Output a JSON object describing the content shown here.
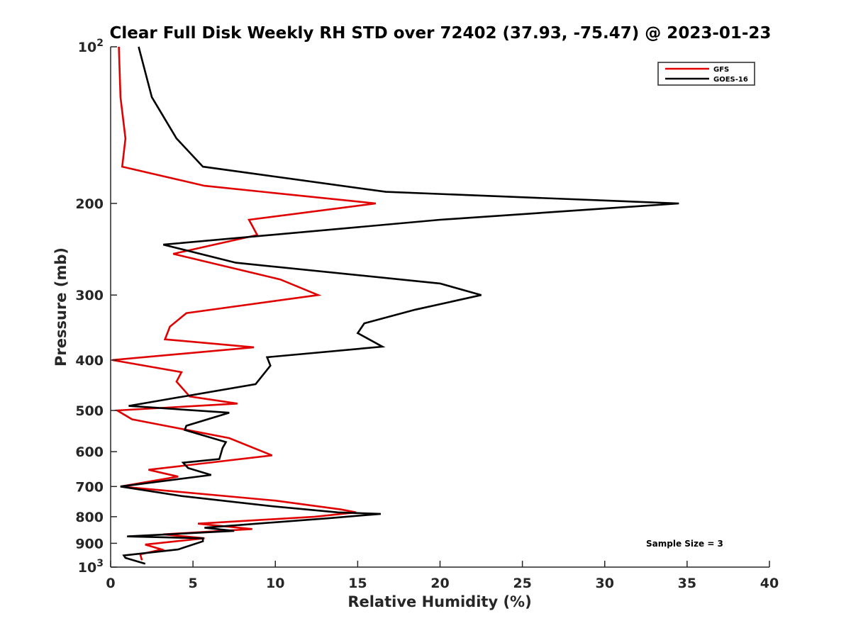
{
  "chart_data": {
    "type": "line",
    "title": "Clear Full Disk Weekly RH STD over 72402 (37.93, -75.47) @ 2023-01-23",
    "xlabel": "Relative Humidity (%)",
    "ylabel": "Pressure (mb)",
    "xlim": [
      0,
      40
    ],
    "ylim": [
      100,
      1000
    ],
    "yscale": "log",
    "y_reversed": true,
    "grid": false,
    "x_ticks": [
      {
        "value": 0,
        "label": "0"
      },
      {
        "value": 5,
        "label": "5"
      },
      {
        "value": 10,
        "label": "10"
      },
      {
        "value": 15,
        "label": "15"
      },
      {
        "value": 20,
        "label": "20"
      },
      {
        "value": 25,
        "label": "25"
      },
      {
        "value": 30,
        "label": "30"
      },
      {
        "value": 35,
        "label": "35"
      },
      {
        "value": 40,
        "label": "40"
      }
    ],
    "y_ticks": [
      {
        "value": 100,
        "base": "10",
        "exp": "2"
      },
      {
        "value": 200,
        "label": "200"
      },
      {
        "value": 300,
        "label": "300"
      },
      {
        "value": 400,
        "label": "400"
      },
      {
        "value": 500,
        "label": "500"
      },
      {
        "value": 600,
        "label": "600"
      },
      {
        "value": 700,
        "label": "700"
      },
      {
        "value": 800,
        "label": "800"
      },
      {
        "value": 900,
        "label": "900"
      },
      {
        "value": 1000,
        "base": "10",
        "exp": "3"
      }
    ],
    "legend": {
      "position": "top-right"
    },
    "annotation": "Sample Size = 3",
    "series": [
      {
        "name": "GFS",
        "color": "#e00000",
        "points": [
          [
            0.5,
            100
          ],
          [
            0.6,
            125
          ],
          [
            0.9,
            150
          ],
          [
            0.7,
            170
          ],
          [
            5.7,
            185
          ],
          [
            16.1,
            200
          ],
          [
            8.4,
            215
          ],
          [
            8.9,
            230
          ],
          [
            3.8,
            250
          ],
          [
            10.3,
            280
          ],
          [
            12.6,
            300
          ],
          [
            4.6,
            325
          ],
          [
            3.6,
            345
          ],
          [
            3.3,
            365
          ],
          [
            8.7,
            378
          ],
          [
            0.1,
            400
          ],
          [
            4.3,
            422
          ],
          [
            4.0,
            440
          ],
          [
            4.8,
            470
          ],
          [
            7.7,
            485
          ],
          [
            0.4,
            500
          ],
          [
            1.3,
            520
          ],
          [
            7.2,
            565
          ],
          [
            9.8,
            610
          ],
          [
            2.3,
            650
          ],
          [
            4.1,
            670
          ],
          [
            0.6,
            700
          ],
          [
            10.0,
            745
          ],
          [
            14.0,
            775
          ],
          [
            14.9,
            785
          ],
          [
            12.4,
            800
          ],
          [
            5.3,
            825
          ],
          [
            8.6,
            845
          ],
          [
            3.2,
            865
          ],
          [
            5.7,
            880
          ],
          [
            2.1,
            905
          ],
          [
            3.1,
            925
          ],
          [
            1.8,
            945
          ],
          [
            1.9,
            970
          ]
        ]
      },
      {
        "name": "GOES-16",
        "color": "#000000",
        "points": [
          [
            1.7,
            100
          ],
          [
            2.5,
            125
          ],
          [
            4.0,
            150
          ],
          [
            5.6,
            170
          ],
          [
            16.7,
            190
          ],
          [
            34.5,
            200
          ],
          [
            20.0,
            215
          ],
          [
            3.2,
            240
          ],
          [
            7.6,
            260
          ],
          [
            20.0,
            285
          ],
          [
            22.5,
            300
          ],
          [
            18.5,
            320
          ],
          [
            15.4,
            340
          ],
          [
            15.0,
            355
          ],
          [
            16.5,
            377
          ],
          [
            9.5,
            395
          ],
          [
            9.7,
            410
          ],
          [
            8.8,
            445
          ],
          [
            1.1,
            490
          ],
          [
            7.2,
            505
          ],
          [
            4.6,
            535
          ],
          [
            4.5,
            545
          ],
          [
            7.0,
            575
          ],
          [
            6.8,
            590
          ],
          [
            6.6,
            620
          ],
          [
            4.4,
            630
          ],
          [
            4.7,
            645
          ],
          [
            6.1,
            665
          ],
          [
            0.6,
            700
          ],
          [
            4.3,
            730
          ],
          [
            10.0,
            765
          ],
          [
            13.8,
            785
          ],
          [
            16.4,
            790
          ],
          [
            13.3,
            805
          ],
          [
            5.7,
            840
          ],
          [
            7.5,
            852
          ],
          [
            1.0,
            873
          ],
          [
            5.6,
            880
          ],
          [
            5.6,
            892
          ],
          [
            4.1,
            925
          ],
          [
            0.8,
            950
          ],
          [
            0.9,
            960
          ],
          [
            2.1,
            985
          ]
        ]
      }
    ]
  }
}
